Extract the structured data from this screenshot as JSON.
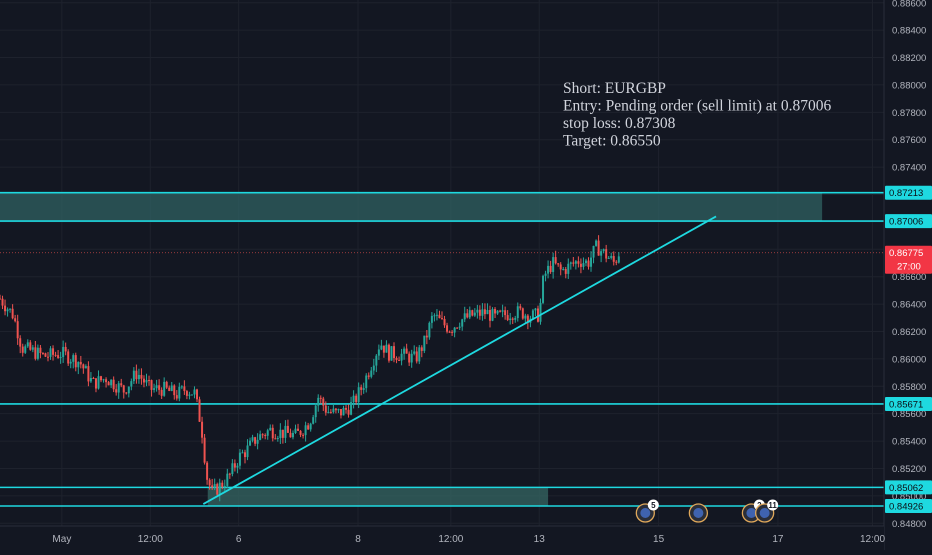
{
  "chart_data": {
    "type": "candlestick",
    "symbol": "EURGBP",
    "y_axis": {
      "min": 0.8478,
      "max": 0.8862,
      "ticks": [
        "0.88600",
        "0.88400",
        "0.88200",
        "0.88000",
        "0.87800",
        "0.87600",
        "0.87400",
        "0.87200",
        "0.87000",
        "0.86800",
        "0.86600",
        "0.86400",
        "0.86200",
        "0.86000",
        "0.85800",
        "0.85600",
        "0.85400",
        "0.85200",
        "0.85000",
        "0.84800"
      ]
    },
    "x_axis": {
      "ticks": [
        {
          "label": "May",
          "pos": 0.07
        },
        {
          "label": "12:00",
          "pos": 0.17
        },
        {
          "label": "6",
          "pos": 0.27
        },
        {
          "label": "8",
          "pos": 0.405
        },
        {
          "label": "12:00",
          "pos": 0.51
        },
        {
          "label": "13",
          "pos": 0.61
        },
        {
          "label": "15",
          "pos": 0.745
        },
        {
          "label": "17",
          "pos": 0.88
        },
        {
          "label": "12:00",
          "pos": 0.987
        }
      ]
    },
    "levels": [
      {
        "value": 0.87213,
        "label": "0.87213"
      },
      {
        "value": 0.87006,
        "label": "0.87006"
      },
      {
        "value": 0.85671,
        "label": "0.85671"
      },
      {
        "value": 0.85062,
        "label": "0.85062"
      },
      {
        "value": 0.84926,
        "label": "0.84926"
      }
    ],
    "zones": [
      {
        "from": 0.87006,
        "to": 0.87213,
        "start": 0.0,
        "end": 0.93
      },
      {
        "from": 0.84926,
        "to": 0.85062,
        "start": 0.235,
        "end": 0.62
      }
    ],
    "trendline": {
      "start": [
        0.23,
        0.8494
      ],
      "end": [
        0.81,
        0.8704
      ]
    },
    "current_price": {
      "value": 0.86775,
      "label": "0.86775",
      "countdown": "27:00"
    },
    "candles": [
      {
        "x": 0.0,
        "c": 0.8644
      },
      {
        "x": 0.015,
        "c": 0.8632
      },
      {
        "x": 0.025,
        "c": 0.8608
      },
      {
        "x": 0.035,
        "c": 0.8606
      },
      {
        "x": 0.05,
        "c": 0.8602
      },
      {
        "x": 0.07,
        "c": 0.8604
      },
      {
        "x": 0.09,
        "c": 0.8598
      },
      {
        "x": 0.105,
        "c": 0.8582
      },
      {
        "x": 0.12,
        "c": 0.8586
      },
      {
        "x": 0.14,
        "c": 0.8577
      },
      {
        "x": 0.155,
        "c": 0.859
      },
      {
        "x": 0.17,
        "c": 0.8578
      },
      {
        "x": 0.185,
        "c": 0.8578
      },
      {
        "x": 0.2,
        "c": 0.8574
      },
      {
        "x": 0.21,
        "c": 0.8578
      },
      {
        "x": 0.22,
        "c": 0.8575
      },
      {
        "x": 0.228,
        "c": 0.855
      },
      {
        "x": 0.234,
        "c": 0.8514
      },
      {
        "x": 0.24,
        "c": 0.8502
      },
      {
        "x": 0.25,
        "c": 0.8508
      },
      {
        "x": 0.26,
        "c": 0.8515
      },
      {
        "x": 0.27,
        "c": 0.8528
      },
      {
        "x": 0.28,
        "c": 0.8534
      },
      {
        "x": 0.29,
        "c": 0.8542
      },
      {
        "x": 0.305,
        "c": 0.8548
      },
      {
        "x": 0.32,
        "c": 0.8546
      },
      {
        "x": 0.335,
        "c": 0.8544
      },
      {
        "x": 0.35,
        "c": 0.8554
      },
      {
        "x": 0.36,
        "c": 0.8572
      },
      {
        "x": 0.37,
        "c": 0.8562
      },
      {
        "x": 0.38,
        "c": 0.856
      },
      {
        "x": 0.39,
        "c": 0.8562
      },
      {
        "x": 0.4,
        "c": 0.8568
      },
      {
        "x": 0.41,
        "c": 0.858
      },
      {
        "x": 0.42,
        "c": 0.8596
      },
      {
        "x": 0.43,
        "c": 0.8612
      },
      {
        "x": 0.44,
        "c": 0.8604
      },
      {
        "x": 0.455,
        "c": 0.8603
      },
      {
        "x": 0.47,
        "c": 0.86
      },
      {
        "x": 0.48,
        "c": 0.8612
      },
      {
        "x": 0.49,
        "c": 0.8632
      },
      {
        "x": 0.5,
        "c": 0.8626
      },
      {
        "x": 0.51,
        "c": 0.8622
      },
      {
        "x": 0.52,
        "c": 0.8628
      },
      {
        "x": 0.535,
        "c": 0.8632
      },
      {
        "x": 0.55,
        "c": 0.8634
      },
      {
        "x": 0.56,
        "c": 0.863
      },
      {
        "x": 0.57,
        "c": 0.8632
      },
      {
        "x": 0.58,
        "c": 0.8634
      },
      {
        "x": 0.59,
        "c": 0.8634
      },
      {
        "x": 0.6,
        "c": 0.8631
      },
      {
        "x": 0.61,
        "c": 0.8632
      },
      {
        "x": 0.615,
        "c": 0.866
      },
      {
        "x": 0.625,
        "c": 0.867
      },
      {
        "x": 0.635,
        "c": 0.8664
      },
      {
        "x": 0.645,
        "c": 0.8668
      },
      {
        "x": 0.655,
        "c": 0.8672
      },
      {
        "x": 0.665,
        "c": 0.867
      },
      {
        "x": 0.675,
        "c": 0.8682
      },
      {
        "x": 0.685,
        "c": 0.8676
      },
      {
        "x": 0.695,
        "c": 0.867
      },
      {
        "x": 0.7,
        "c": 0.86775
      }
    ]
  },
  "note_lines": [
    "Short: EURGBP",
    "Entry: Pending order (sell limit) at 0.87006",
    "stop loss: 0.87308",
    "Target: 0.86550"
  ],
  "event_icons": [
    {
      "pos": 0.73,
      "badge": "5"
    },
    {
      "pos": 0.79,
      "badge": ""
    },
    {
      "pos": 0.85,
      "badge": "2"
    },
    {
      "pos": 0.865,
      "badge": "11"
    }
  ],
  "colors": {
    "background": "#131722",
    "grid": "#1e222d",
    "level_line": "#1ed9e0",
    "zone_fill": "#2e5d5e",
    "zone_fill_lower": "#33615f",
    "bull": "#26a69a",
    "bear": "#ef5350",
    "text": "#d1d4dc",
    "axis_text": "#b2b5be",
    "price_label_bg": "#f23645"
  }
}
